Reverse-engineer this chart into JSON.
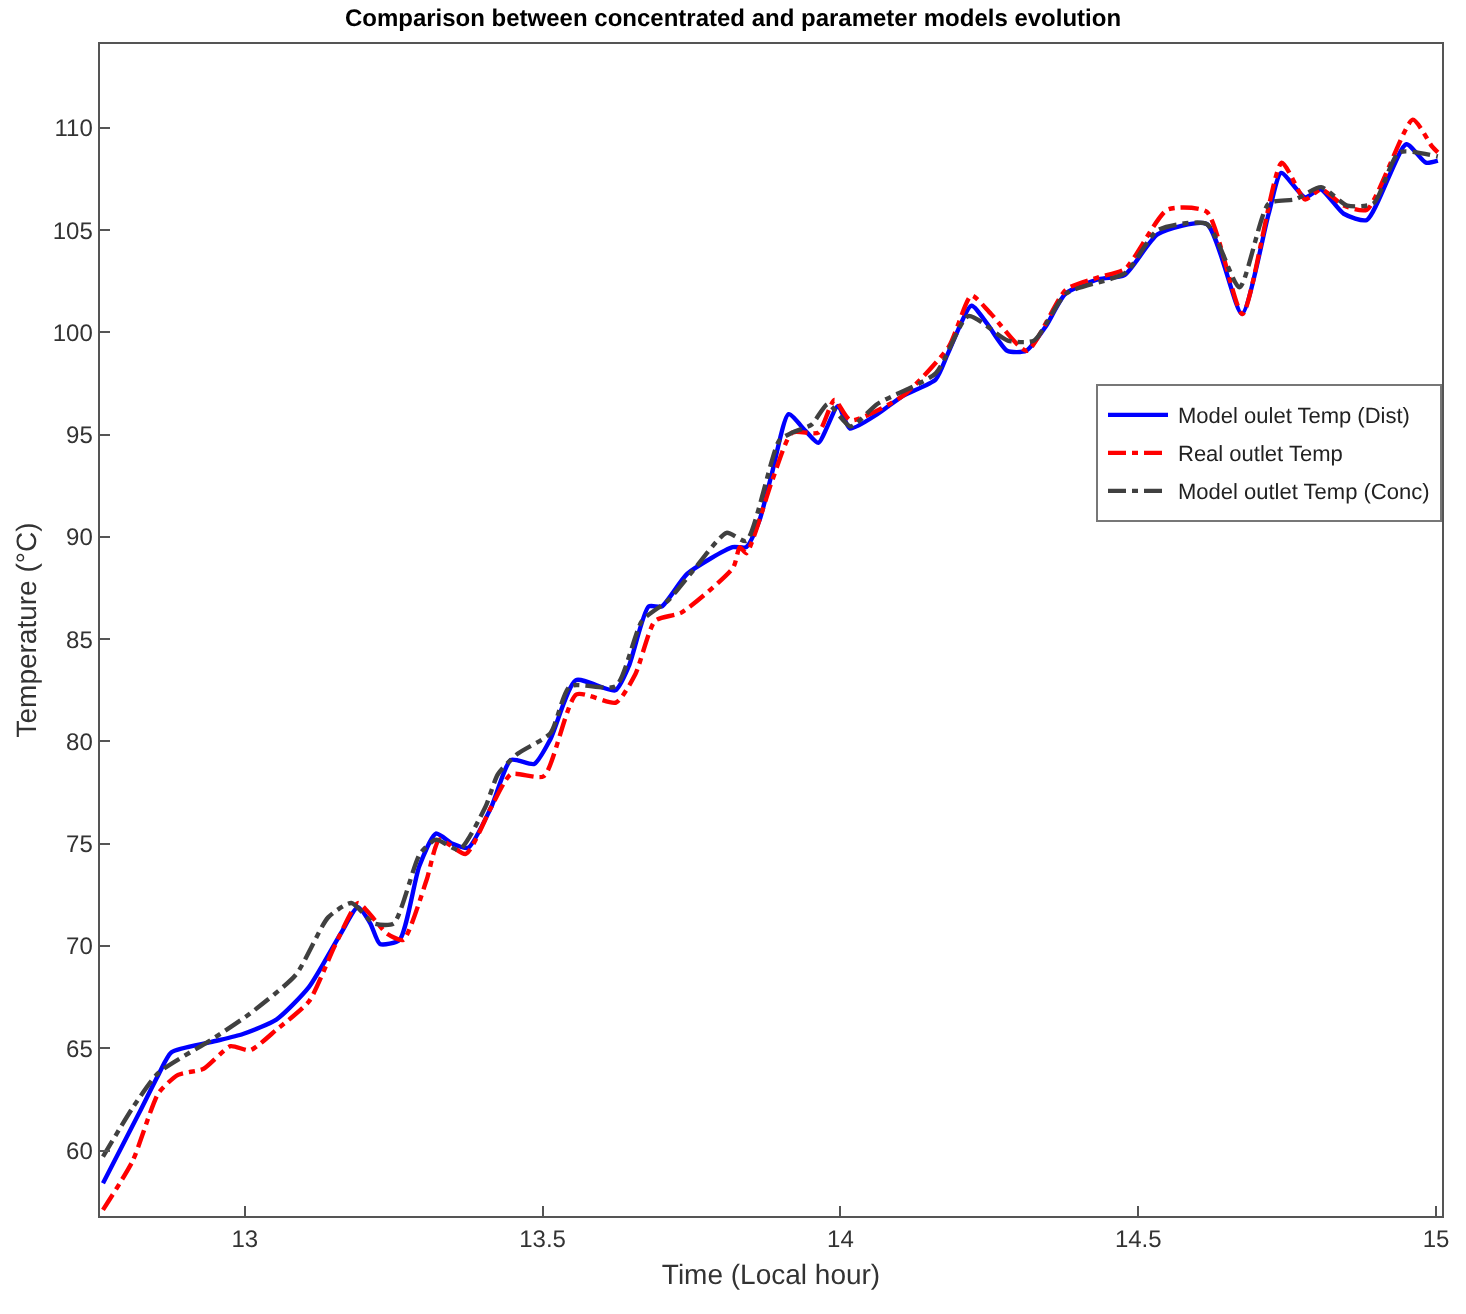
{
  "chart_data": {
    "type": "line",
    "title": "Comparison between concentrated and parameter models evolution",
    "xlabel": "Time (Local hour)",
    "ylabel": "Temperature (°C)",
    "xlim": [
      12.757,
      15.01
    ],
    "ylim": [
      56.8,
      114.1
    ],
    "xticks": [
      13,
      13.5,
      14,
      14.5,
      15
    ],
    "yticks": [
      60,
      65,
      70,
      75,
      80,
      85,
      90,
      95,
      100,
      105,
      110
    ],
    "grid": false,
    "legend": "right",
    "marker": "none",
    "series": [
      {
        "name": "Model oulet Temp (Dist)",
        "color": "#0000ff",
        "line_style": "solid",
        "x": [
          12.762,
          12.822,
          12.855,
          12.877,
          12.943,
          12.997,
          13.053,
          13.108,
          13.161,
          13.19,
          13.211,
          13.227,
          13.26,
          13.293,
          13.321,
          13.349,
          13.375,
          13.414,
          13.447,
          13.486,
          13.513,
          13.556,
          13.622,
          13.645,
          13.678,
          13.7,
          13.743,
          13.819,
          13.842,
          13.864,
          13.885,
          13.913,
          13.941,
          13.963,
          13.996,
          14.016,
          14.062,
          14.105,
          14.16,
          14.181,
          14.22,
          14.247,
          14.28,
          14.312,
          14.345,
          14.378,
          14.434,
          14.477,
          14.533,
          14.615,
          14.674,
          14.719,
          14.74,
          14.78,
          14.806,
          14.845,
          14.884,
          14.95,
          14.983,
          15.003
        ],
        "values": [
          58.4,
          61.8,
          63.7,
          64.8,
          65.3,
          65.7,
          66.4,
          68.0,
          70.6,
          71.9,
          71.1,
          70.1,
          70.3,
          73.9,
          75.5,
          75.0,
          74.8,
          76.8,
          79.1,
          78.9,
          80.1,
          83.0,
          82.5,
          83.7,
          86.6,
          86.6,
          88.2,
          89.5,
          89.5,
          90.8,
          93.1,
          96.0,
          95.2,
          94.6,
          96.4,
          95.3,
          96.0,
          96.9,
          97.7,
          99.0,
          101.3,
          100.4,
          99.1,
          99.1,
          100.3,
          101.9,
          102.6,
          102.8,
          104.8,
          105.3,
          100.9,
          105.8,
          107.8,
          106.6,
          107.0,
          105.8,
          105.5,
          109.2,
          108.3,
          108.4
        ]
      },
      {
        "name": "Real outlet Temp",
        "color": "#ff0000",
        "line_style": "dashed",
        "x": [
          12.762,
          12.812,
          12.855,
          12.888,
          12.931,
          12.976,
          13.009,
          13.053,
          13.108,
          13.151,
          13.19,
          13.206,
          13.239,
          13.266,
          13.305,
          13.327,
          13.371,
          13.414,
          13.447,
          13.502,
          13.557,
          13.623,
          13.656,
          13.689,
          13.733,
          13.82,
          13.831,
          13.842,
          13.886,
          13.919,
          13.963,
          13.99,
          14.017,
          14.105,
          14.182,
          14.22,
          14.253,
          14.313,
          14.379,
          14.434,
          14.478,
          14.549,
          14.615,
          14.675,
          14.741,
          14.78,
          14.807,
          14.845,
          14.884,
          14.961,
          14.993,
          15.003
        ],
        "values": [
          57.1,
          59.5,
          62.8,
          63.7,
          64.0,
          65.1,
          64.9,
          65.9,
          67.3,
          70.0,
          72.1,
          71.7,
          70.6,
          70.3,
          73.2,
          75.2,
          74.5,
          76.8,
          78.4,
          78.3,
          82.3,
          81.9,
          83.3,
          85.9,
          86.3,
          88.5,
          89.5,
          89.2,
          92.8,
          95.1,
          95.1,
          96.7,
          95.7,
          96.9,
          99.3,
          101.8,
          100.9,
          99.1,
          102.1,
          102.7,
          103.1,
          106.0,
          105.9,
          100.9,
          108.3,
          106.5,
          107.0,
          106.2,
          106.0,
          110.4,
          109.1,
          108.8
        ]
      },
      {
        "name": "Model outlet Temp (Conc)",
        "color": "#404040",
        "line_style": "dashed",
        "x": [
          12.762,
          12.812,
          12.855,
          12.943,
          13.009,
          13.086,
          13.14,
          13.179,
          13.217,
          13.25,
          13.294,
          13.321,
          13.36,
          13.404,
          13.425,
          13.458,
          13.513,
          13.546,
          13.623,
          13.667,
          13.711,
          13.754,
          13.809,
          13.842,
          13.897,
          13.919,
          13.952,
          13.979,
          14.017,
          14.062,
          14.16,
          14.215,
          14.281,
          14.325,
          14.379,
          14.478,
          14.533,
          14.615,
          14.67,
          14.719,
          14.763,
          14.807,
          14.851,
          14.895,
          14.938,
          15.003
        ],
        "values": [
          59.7,
          62.1,
          63.8,
          65.4,
          66.7,
          68.6,
          71.4,
          72.1,
          71.1,
          71.1,
          74.5,
          75.2,
          74.7,
          76.8,
          78.4,
          79.4,
          80.4,
          82.7,
          82.7,
          85.9,
          86.9,
          88.4,
          90.2,
          89.8,
          94.7,
          95.1,
          95.5,
          96.5,
          95.4,
          96.5,
          98.0,
          100.8,
          99.6,
          99.6,
          101.9,
          102.9,
          105.0,
          105.3,
          102.2,
          106.3,
          106.5,
          107.1,
          106.2,
          106.3,
          108.8,
          108.6
        ]
      }
    ]
  }
}
